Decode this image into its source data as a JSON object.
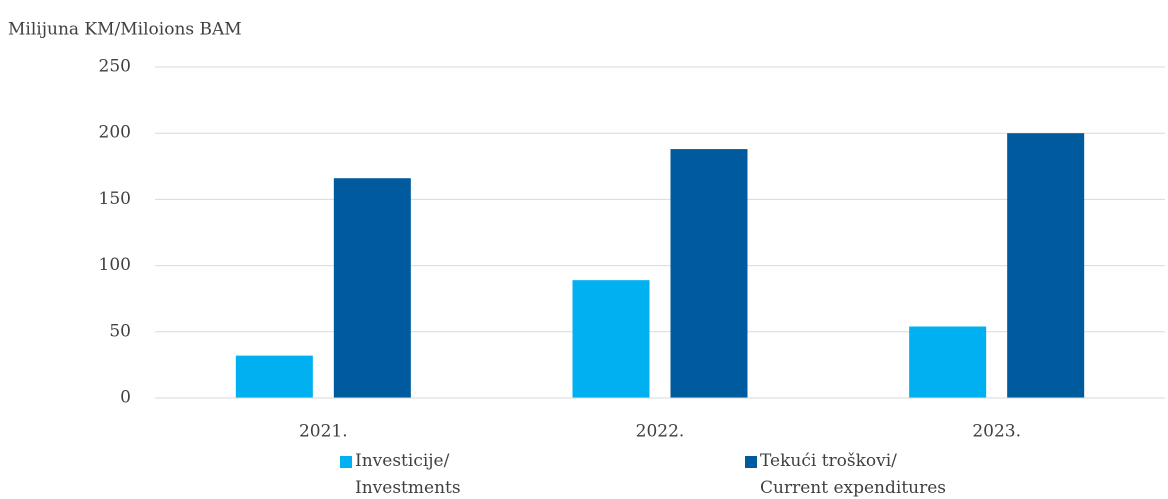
{
  "chart_data": {
    "type": "bar",
    "y_label": "Milijuna KM/Miloions BAM",
    "categories": [
      "2021.",
      "2022.",
      "2023."
    ],
    "series": [
      {
        "name": "Investicije/\nInvestments",
        "color": "#00b0f0",
        "values": [
          32,
          89,
          54
        ]
      },
      {
        "name": "Tekući troškovi/\nCurrent expenditures",
        "color": "#005a9e",
        "values": [
          166,
          188,
          200
        ]
      }
    ],
    "ylim": [
      0,
      250
    ],
    "yticks": [
      0,
      50,
      100,
      150,
      200,
      250
    ],
    "grid": true,
    "legend": "bottom"
  }
}
